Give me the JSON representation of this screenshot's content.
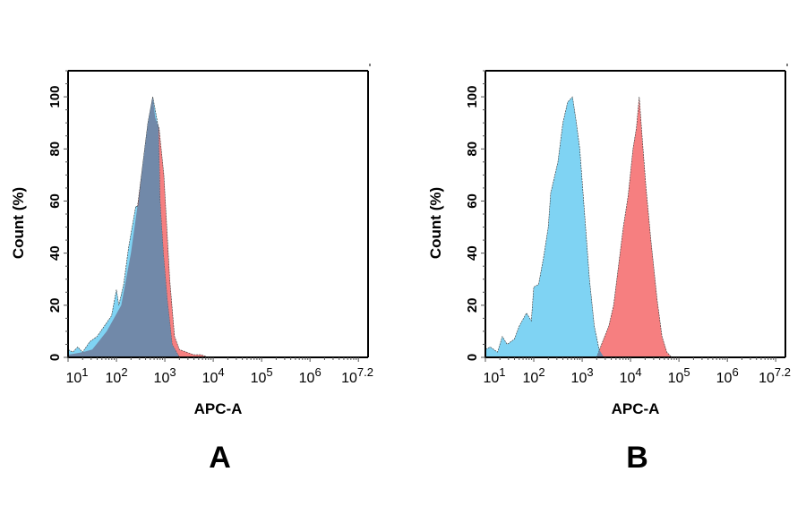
{
  "colors": {
    "control": "#7fd3f3",
    "sample": "#f67f80",
    "overlap": "#7189a9",
    "outline": "#333333"
  },
  "chart_data": [
    {
      "type": "area",
      "panel_label": "A",
      "xlabel": "APC-A",
      "ylabel": "Count  (%)",
      "xscale": "log",
      "xlim_log10": [
        1,
        7.2
      ],
      "ylim": [
        0,
        110
      ],
      "x_tick_labels": [
        {
          "base": "10",
          "exp": "1",
          "log10": 1
        },
        {
          "base": "10",
          "exp": "2",
          "log10": 2
        },
        {
          "base": "10",
          "exp": "3",
          "log10": 3
        },
        {
          "base": "10",
          "exp": "4",
          "log10": 4
        },
        {
          "base": "10",
          "exp": "5",
          "log10": 5
        },
        {
          "base": "10",
          "exp": "6",
          "log10": 6
        },
        {
          "base": "10",
          "exp": "7.2",
          "log10": 7.2
        }
      ],
      "y_ticks": [
        0,
        20,
        40,
        60,
        80,
        100
      ],
      "grid": false,
      "series": [
        {
          "color_key": "sample",
          "log10_x": [
            1.0,
            1.3,
            1.5,
            1.8,
            2.1,
            2.3,
            2.45,
            2.55,
            2.65,
            2.75,
            2.8,
            2.88,
            2.98,
            3.1,
            3.2,
            3.3,
            3.45,
            3.6,
            3.75,
            3.9
          ],
          "y": [
            1,
            2,
            3,
            10,
            20,
            40,
            60,
            75,
            90,
            100,
            92,
            88,
            70,
            30,
            8,
            3,
            2,
            1,
            1,
            0
          ]
        },
        {
          "color_key": "control",
          "log10_x": [
            1.0,
            1.1,
            1.2,
            1.3,
            1.45,
            1.6,
            1.75,
            1.9,
            2.0,
            2.05,
            2.15,
            2.25,
            2.4,
            2.45,
            2.55,
            2.65,
            2.75,
            2.8,
            2.87,
            2.9,
            2.97,
            3.05,
            3.15,
            3.3
          ],
          "y": [
            3,
            2,
            4,
            2,
            6,
            8,
            12,
            16,
            26,
            20,
            28,
            42,
            58,
            58,
            75,
            90,
            100,
            95,
            88,
            60,
            40,
            22,
            5,
            0
          ]
        }
      ]
    },
    {
      "type": "area",
      "panel_label": "B",
      "xlabel": "APC-A",
      "ylabel": "Count  (%)",
      "xscale": "log",
      "xlim_log10": [
        1,
        7.2
      ],
      "ylim": [
        0,
        110
      ],
      "x_tick_labels": [
        {
          "base": "10",
          "exp": "1",
          "log10": 1
        },
        {
          "base": "10",
          "exp": "2",
          "log10": 2
        },
        {
          "base": "10",
          "exp": "3",
          "log10": 3
        },
        {
          "base": "10",
          "exp": "4",
          "log10": 4
        },
        {
          "base": "10",
          "exp": "5",
          "log10": 5
        },
        {
          "base": "10",
          "exp": "6",
          "log10": 6
        },
        {
          "base": "10",
          "exp": "7.2",
          "log10": 7.2
        }
      ],
      "y_ticks": [
        0,
        20,
        40,
        60,
        80,
        100
      ],
      "grid": false,
      "series": [
        {
          "color_key": "control",
          "log10_x": [
            1.0,
            1.1,
            1.25,
            1.35,
            1.45,
            1.6,
            1.7,
            1.85,
            1.95,
            2.0,
            2.1,
            2.2,
            2.3,
            2.35,
            2.5,
            2.6,
            2.7,
            2.8,
            2.88,
            2.95,
            3.05,
            3.15,
            3.25,
            3.35,
            3.45
          ],
          "y": [
            3,
            4,
            2,
            8,
            5,
            7,
            12,
            17,
            14,
            27,
            28,
            38,
            50,
            63,
            75,
            90,
            98,
            100,
            90,
            80,
            55,
            30,
            12,
            3,
            0
          ]
        },
        {
          "color_key": "sample",
          "log10_x": [
            3.3,
            3.4,
            3.55,
            3.65,
            3.75,
            3.85,
            3.95,
            4.05,
            4.12,
            4.18,
            4.25,
            4.32,
            4.42,
            4.55,
            4.65,
            4.75,
            4.85
          ],
          "y": [
            0,
            5,
            12,
            20,
            35,
            50,
            62,
            80,
            88,
            100,
            82,
            65,
            45,
            22,
            8,
            2,
            0
          ]
        }
      ]
    }
  ]
}
